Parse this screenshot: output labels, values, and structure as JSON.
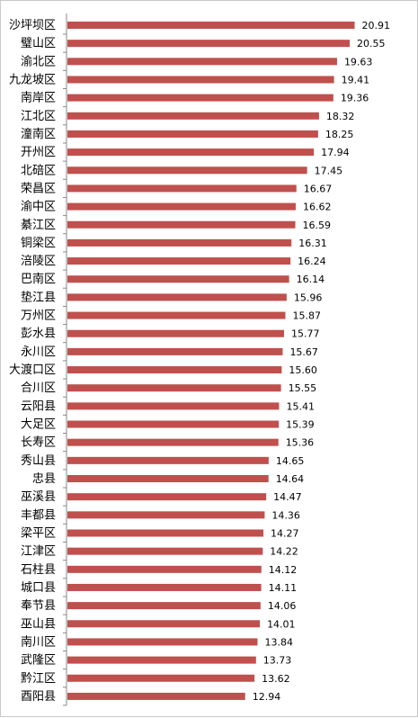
{
  "chart_data": {
    "type": "bar",
    "orientation": "horizontal",
    "title": "",
    "xlabel": "",
    "ylabel": "",
    "grid": false,
    "legend": "none",
    "bar_color": "#c0504d",
    "xlim": [
      0,
      21
    ],
    "categories": [
      "沙坪坝区",
      "璧山区",
      "渝北区",
      "九龙坡区",
      "南岸区",
      "江北区",
      "潼南区",
      "开州区",
      "北碚区",
      "荣昌区",
      "渝中区",
      "綦江区",
      "铜梁区",
      "涪陵区",
      "巴南区",
      "垫江县",
      "万州区",
      "彭水县",
      "永川区",
      "大渡口区",
      "合川区",
      "云阳县",
      "大足区",
      "长寿区",
      "秀山县",
      "忠县",
      "巫溪县",
      "丰都县",
      "梁平区",
      "江津区",
      "石柱县",
      "城口县",
      "奉节县",
      "巫山县",
      "南川区",
      "武隆区",
      "黔江区",
      "酉阳县"
    ],
    "values": [
      20.91,
      20.55,
      19.63,
      19.41,
      19.36,
      18.32,
      18.25,
      17.94,
      17.45,
      16.67,
      16.62,
      16.59,
      16.31,
      16.24,
      16.14,
      15.96,
      15.87,
      15.77,
      15.67,
      15.6,
      15.55,
      15.41,
      15.39,
      15.36,
      14.65,
      14.64,
      14.47,
      14.36,
      14.27,
      14.22,
      14.12,
      14.11,
      14.06,
      14.01,
      13.84,
      13.73,
      13.62,
      12.94
    ],
    "value_labels": [
      "20.91",
      "20.55",
      "19.63",
      "19.41",
      "19.36",
      "18.32",
      "18.25",
      "17.94",
      "17.45",
      "16.67",
      "16.62",
      "16.59",
      "16.31",
      "16.24",
      "16.14",
      "15.96",
      "15.87",
      "15.77",
      "15.67",
      "15.60",
      "15.55",
      "15.41",
      "15.39",
      "15.36",
      "14.65",
      "14.64",
      "14.47",
      "14.36",
      "14.27",
      "14.22",
      "14.12",
      "14.11",
      "14.06",
      "14.01",
      "13.84",
      "13.73",
      "13.62",
      "12.94"
    ]
  }
}
